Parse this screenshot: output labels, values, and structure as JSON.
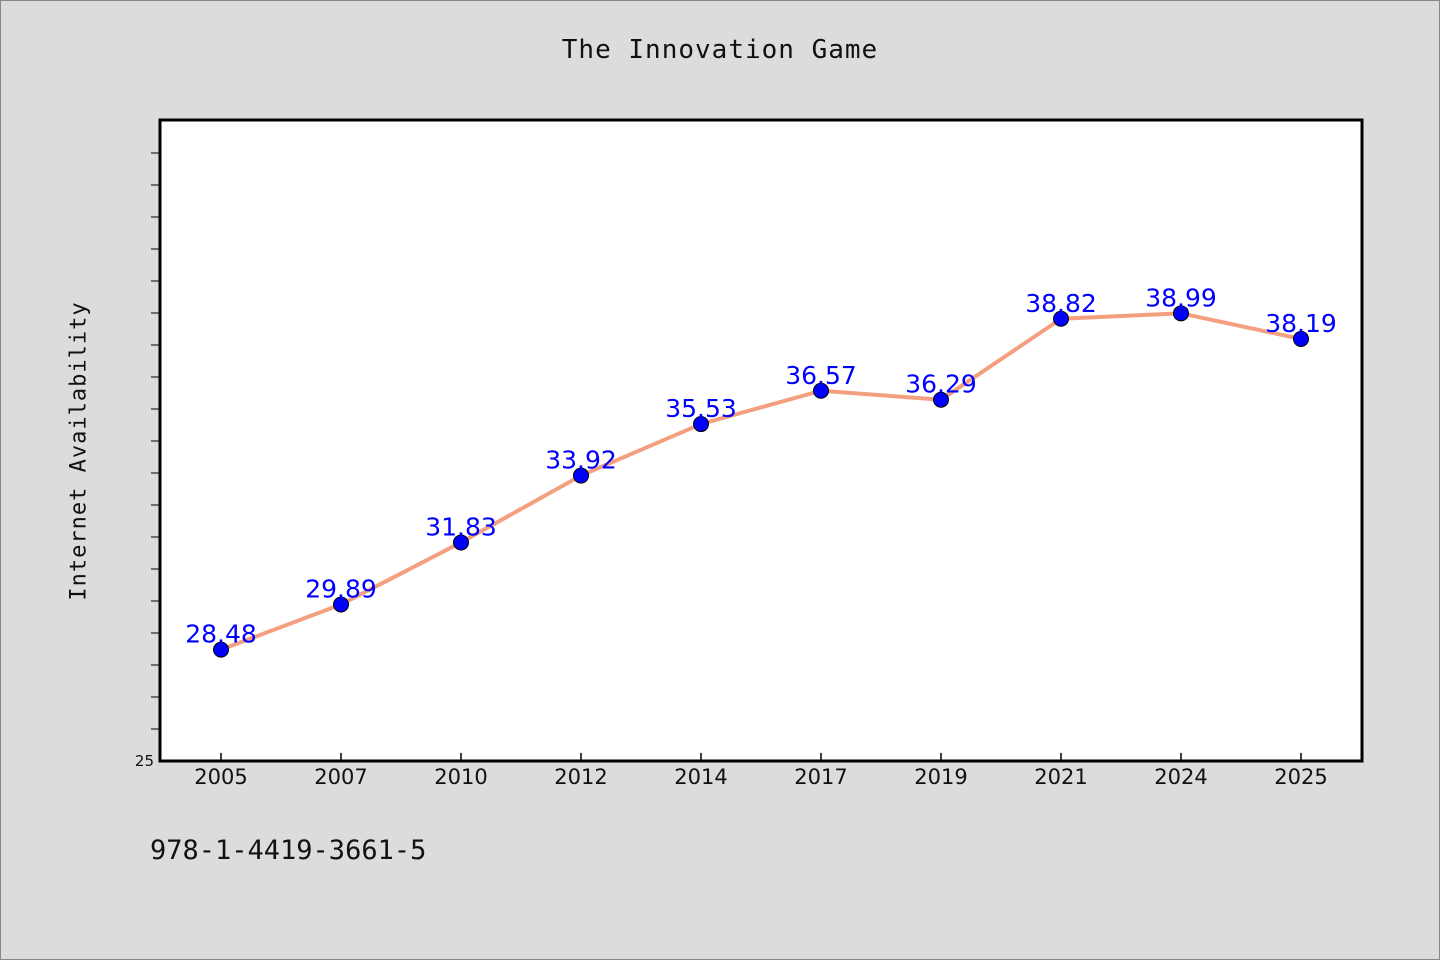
{
  "chart_data": {
    "type": "line",
    "title": "The Innovation Game",
    "xlabel": "",
    "ylabel": "Internet Availability",
    "categories": [
      "2005",
      "2007",
      "2010",
      "2012",
      "2014",
      "2017",
      "2019",
      "2021",
      "2024",
      "2025"
    ],
    "series": [
      {
        "values": [
          28.48,
          29.89,
          31.83,
          33.92,
          35.53,
          36.57,
          36.29,
          38.82,
          38.99,
          38.19
        ],
        "labels": [
          "28.48",
          "29.89",
          "31.83",
          "33.92",
          "35.53",
          "36.57",
          "36.29",
          "38.82",
          "38.99",
          "38.19"
        ],
        "line_color": "#f4a080",
        "marker_color": "#0000ff",
        "label_color": "#0000ff"
      }
    ],
    "ylim": [
      25,
      45
    ],
    "ytick_labels": [
      "25"
    ],
    "grid": false,
    "legend": "none"
  },
  "footnote": "978-1-4419-3661-5",
  "colors": {
    "background": "#dcdcdc",
    "plot_background": "#ffffff",
    "axis": "#000000"
  }
}
